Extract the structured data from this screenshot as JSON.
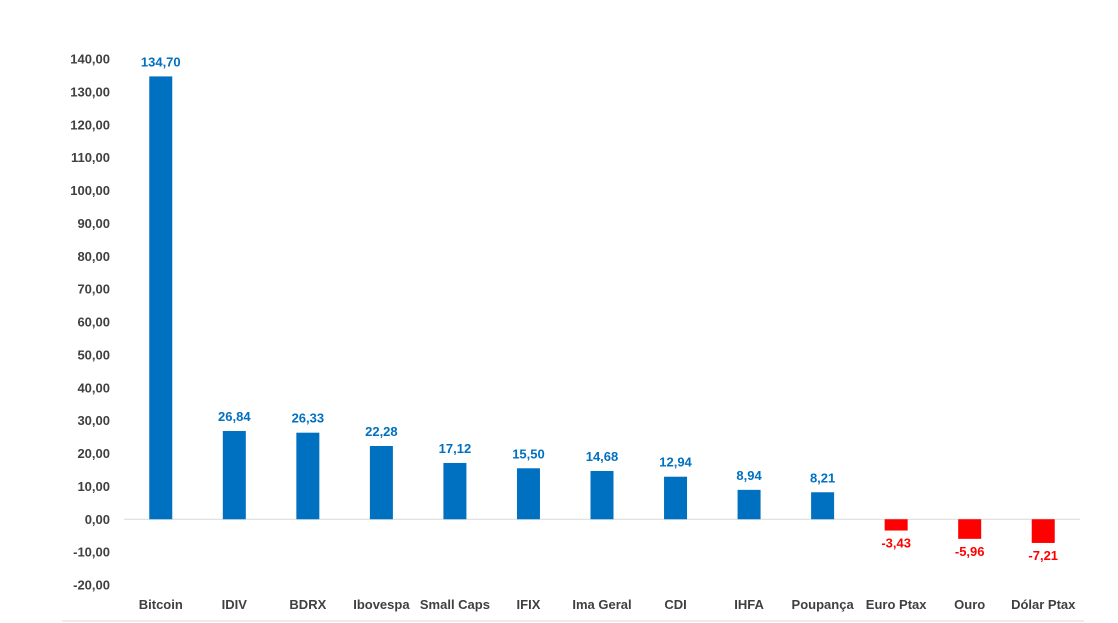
{
  "chart_data": {
    "type": "bar",
    "title": "",
    "xlabel": "",
    "ylabel": "",
    "ylim": [
      -20,
      140
    ],
    "ytick_step": 10,
    "yticks": [
      "140,00",
      "130,00",
      "120,00",
      "110,00",
      "100,00",
      "90,00",
      "80,00",
      "70,00",
      "60,00",
      "50,00",
      "40,00",
      "30,00",
      "20,00",
      "10,00",
      "0,00",
      "-10,00",
      "-20,00"
    ],
    "categories": [
      "Bitcoin",
      "IDIV",
      "BDRX",
      "Ibovespa",
      "Small Caps",
      "IFIX",
      "Ima Geral",
      "CDI",
      "IHFA",
      "Poupança",
      "Euro Ptax",
      "Ouro",
      "Dólar Ptax"
    ],
    "values": [
      134.7,
      26.84,
      26.33,
      22.28,
      17.12,
      15.5,
      14.68,
      12.94,
      8.94,
      8.21,
      -3.43,
      -5.96,
      -7.21
    ],
    "data_labels": [
      "134,70",
      "26,84",
      "26,33",
      "22,28",
      "17,12",
      "15,50",
      "14,68",
      "12,94",
      "8,94",
      "8,21",
      "-3,43",
      "-5,96",
      "-7,21"
    ],
    "positive_color": "#0070C0",
    "negative_color": "#FF0000",
    "grid": false,
    "legend": "none"
  }
}
